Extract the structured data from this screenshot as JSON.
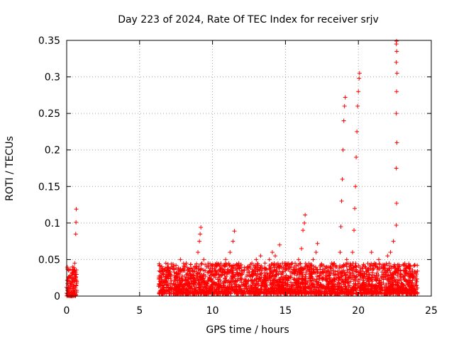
{
  "chart_data": {
    "type": "scatter",
    "title": "Day 223 of 2024, Rate Of TEC Index for receiver srjv",
    "xlabel": "GPS time / hours",
    "ylabel": "ROTI / TECUs",
    "xlim": [
      0,
      25
    ],
    "ylim": [
      0,
      0.35
    ],
    "grid": true,
    "marker": "+",
    "color": "#ff0000",
    "x_ticks": [
      {
        "value": 0,
        "label": "0"
      },
      {
        "value": 5,
        "label": "5"
      },
      {
        "value": 10,
        "label": "10"
      },
      {
        "value": 15,
        "label": "15"
      },
      {
        "value": 20,
        "label": "20"
      },
      {
        "value": 25,
        "label": "25"
      }
    ],
    "y_ticks": [
      {
        "value": 0,
        "label": "0"
      },
      {
        "value": 0.05,
        "label": "0.05"
      },
      {
        "value": 0.1,
        "label": "0.1"
      },
      {
        "value": 0.15,
        "label": "0.15"
      },
      {
        "value": 0.2,
        "label": "0.2"
      },
      {
        "value": 0.25,
        "label": "0.25"
      },
      {
        "value": 0.3,
        "label": "0.3"
      },
      {
        "value": 0.35,
        "label": "0.35"
      }
    ],
    "series": [
      {
        "name": "ROTI",
        "points": [
          [
            0.0,
            0.012
          ],
          [
            0.05,
            0.008
          ],
          [
            0.1,
            0.015
          ],
          [
            0.15,
            0.02
          ],
          [
            0.2,
            0.01
          ],
          [
            0.25,
            0.018
          ],
          [
            0.3,
            0.025
          ],
          [
            0.35,
            0.03
          ],
          [
            0.4,
            0.04
          ],
          [
            0.45,
            0.035
          ],
          [
            0.5,
            0.02
          ],
          [
            0.55,
            0.045
          ],
          [
            0.6,
            0.03
          ],
          [
            0.65,
            0.015
          ],
          [
            0.62,
            0.085
          ],
          [
            0.64,
            0.101
          ],
          [
            0.66,
            0.119
          ],
          [
            6.4,
            0.02
          ],
          [
            6.6,
            0.035
          ],
          [
            6.8,
            0.045
          ],
          [
            7.0,
            0.03
          ],
          [
            7.2,
            0.04
          ],
          [
            7.5,
            0.025
          ],
          [
            7.8,
            0.05
          ],
          [
            8.0,
            0.035
          ],
          [
            8.2,
            0.045
          ],
          [
            8.5,
            0.03
          ],
          [
            8.8,
            0.04
          ],
          [
            9.0,
            0.06
          ],
          [
            9.1,
            0.075
          ],
          [
            9.15,
            0.085
          ],
          [
            9.2,
            0.094
          ],
          [
            9.4,
            0.05
          ],
          [
            9.7,
            0.04
          ],
          [
            10.0,
            0.035
          ],
          [
            10.3,
            0.045
          ],
          [
            10.6,
            0.04
          ],
          [
            10.9,
            0.05
          ],
          [
            11.2,
            0.06
          ],
          [
            11.4,
            0.075
          ],
          [
            11.5,
            0.089
          ],
          [
            11.8,
            0.045
          ],
          [
            12.1,
            0.035
          ],
          [
            12.4,
            0.04
          ],
          [
            12.7,
            0.045
          ],
          [
            13.0,
            0.05
          ],
          [
            13.3,
            0.055
          ],
          [
            13.6,
            0.045
          ],
          [
            13.9,
            0.05
          ],
          [
            14.1,
            0.06
          ],
          [
            14.3,
            0.055
          ],
          [
            14.6,
            0.07
          ],
          [
            14.8,
            0.045
          ],
          [
            15.0,
            0.035
          ],
          [
            15.3,
            0.04
          ],
          [
            15.6,
            0.035
          ],
          [
            15.9,
            0.05
          ],
          [
            16.1,
            0.065
          ],
          [
            16.2,
            0.09
          ],
          [
            16.3,
            0.1
          ],
          [
            16.35,
            0.111
          ],
          [
            16.6,
            0.04
          ],
          [
            16.9,
            0.05
          ],
          [
            17.1,
            0.06
          ],
          [
            17.2,
            0.072
          ],
          [
            17.4,
            0.04
          ],
          [
            17.7,
            0.035
          ],
          [
            18.0,
            0.03
          ],
          [
            18.3,
            0.035
          ],
          [
            18.5,
            0.04
          ],
          [
            18.75,
            0.06
          ],
          [
            18.8,
            0.095
          ],
          [
            18.85,
            0.13
          ],
          [
            18.9,
            0.16
          ],
          [
            18.95,
            0.2
          ],
          [
            19.0,
            0.24
          ],
          [
            19.05,
            0.26
          ],
          [
            19.1,
            0.272
          ],
          [
            19.2,
            0.05
          ],
          [
            19.4,
            0.04
          ],
          [
            19.6,
            0.06
          ],
          [
            19.7,
            0.09
          ],
          [
            19.75,
            0.12
          ],
          [
            19.8,
            0.15
          ],
          [
            19.85,
            0.19
          ],
          [
            19.9,
            0.225
          ],
          [
            19.95,
            0.26
          ],
          [
            20.0,
            0.28
          ],
          [
            20.05,
            0.298
          ],
          [
            20.08,
            0.305
          ],
          [
            20.3,
            0.04
          ],
          [
            20.6,
            0.035
          ],
          [
            20.9,
            0.06
          ],
          [
            21.1,
            0.045
          ],
          [
            21.4,
            0.05
          ],
          [
            21.7,
            0.04
          ],
          [
            22.0,
            0.055
          ],
          [
            22.2,
            0.06
          ],
          [
            22.4,
            0.075
          ],
          [
            22.6,
            0.097
          ],
          [
            22.62,
            0.127
          ],
          [
            22.6,
            0.175
          ],
          [
            22.64,
            0.21
          ],
          [
            22.6,
            0.25
          ],
          [
            22.62,
            0.28
          ],
          [
            22.65,
            0.305
          ],
          [
            22.6,
            0.32
          ],
          [
            22.63,
            0.335
          ],
          [
            22.6,
            0.345
          ],
          [
            22.62,
            0.349
          ],
          [
            22.8,
            0.04
          ],
          [
            23.1,
            0.035
          ],
          [
            23.4,
            0.03
          ],
          [
            23.7,
            0.025
          ],
          [
            24.0,
            0.02
          ]
        ],
        "dense_bands": [
          {
            "x": [
              0.0,
              0.7
            ],
            "y": [
              0.0,
              0.04
            ]
          },
          {
            "x": [
              6.3,
              24.05
            ],
            "y": [
              0.003,
              0.045
            ]
          }
        ]
      }
    ]
  }
}
